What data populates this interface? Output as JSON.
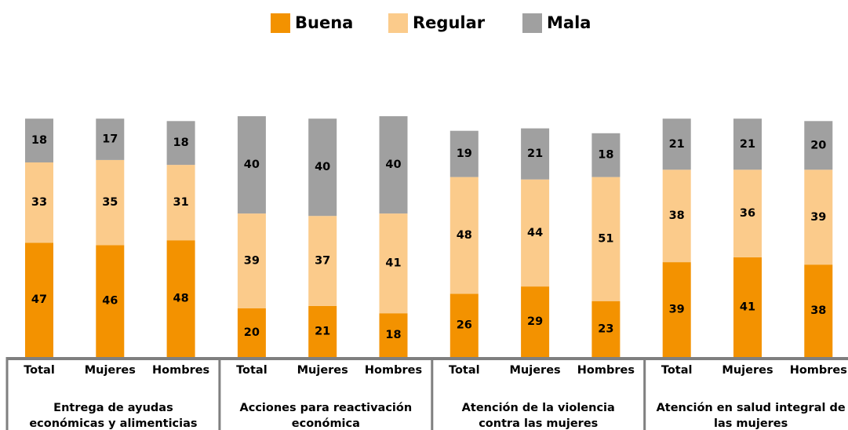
{
  "chart_data": {
    "type": "stacked_bar",
    "categories": [
      "Total",
      "Mujeres",
      "Hombres",
      "Total",
      "Mujeres",
      "Hombres",
      "Total",
      "Mujeres",
      "Hombres",
      "Total",
      "Mujeres",
      "Hombres"
    ],
    "groups": [
      "Entrega de ayudas económicas y alimenticias",
      "Acciones para reactivación económica",
      "Atención de la violencia contra las mujeres",
      "Atención en salud integral de las mujeres"
    ],
    "series": [
      {
        "name": "Buena",
        "color": "#f39200",
        "values": [
          47,
          46,
          48,
          20,
          21,
          18,
          26,
          29,
          23,
          39,
          41,
          38
        ]
      },
      {
        "name": "Regular",
        "color": "#fbcb8b",
        "values": [
          33,
          35,
          31,
          39,
          37,
          41,
          48,
          44,
          51,
          38,
          36,
          39
        ]
      },
      {
        "name": "Mala",
        "color": "#a0a0a0",
        "values": [
          18,
          17,
          18,
          40,
          40,
          40,
          19,
          21,
          18,
          21,
          21,
          20
        ]
      }
    ],
    "ylim": [
      0,
      100
    ],
    "legend": "top"
  }
}
